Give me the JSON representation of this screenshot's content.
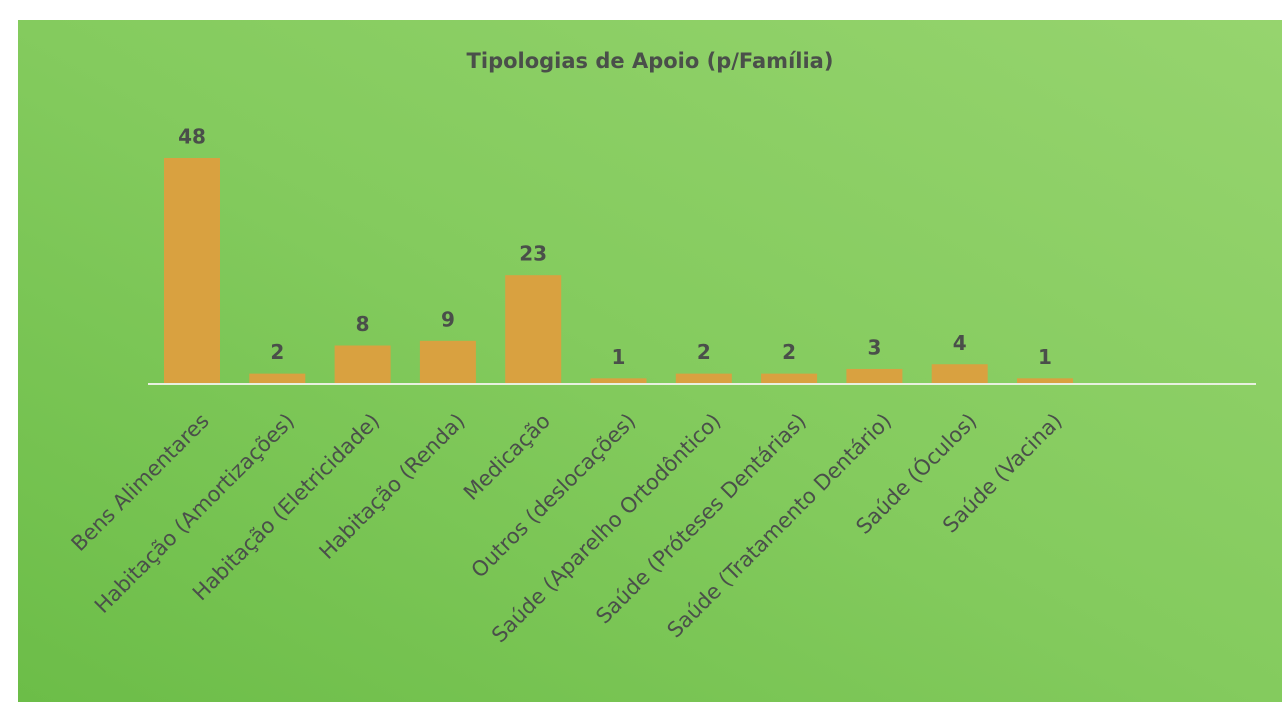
{
  "chart_data": {
    "type": "bar",
    "title": "Tipologias de Apoio (p/Família)",
    "categories": [
      "Bens Alimentares",
      "Habitação (Amortizações)",
      "Habitação (Eletricidade)",
      "Habitação (Renda)",
      "Medicação",
      "Outros (deslocações)",
      "Saúde (Aparelho Ortodôntico)",
      "Saúde (Próteses Dentárias)",
      "Saúde (Tratamento Dentário)",
      "Saúde (Óculos)",
      "Saúde (Vacina)"
    ],
    "values": [
      48,
      2,
      8,
      9,
      23,
      1,
      2,
      2,
      3,
      4,
      1
    ],
    "color": "#d9a140",
    "grid": false
  }
}
